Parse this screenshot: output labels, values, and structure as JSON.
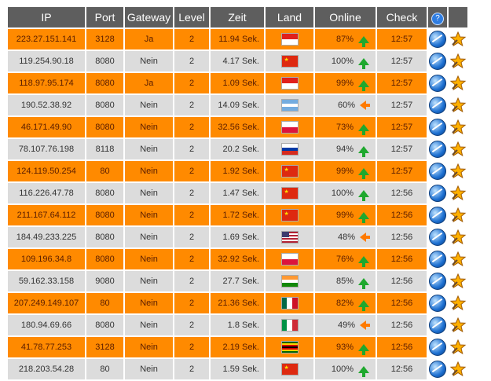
{
  "headers": {
    "ip": "IP",
    "port": "Port",
    "gateway": "Gateway",
    "level": "Level",
    "zeit": "Zeit",
    "land": "Land",
    "online": "Online",
    "check": "Check",
    "help": "?"
  },
  "rows": [
    {
      "ip": "223.27.151.141",
      "port": "3128",
      "gateway": "Ja",
      "level": "2",
      "zeit": "11.94 Sek.",
      "online": "87%",
      "trend": "up",
      "check": "12:57",
      "flag": "id"
    },
    {
      "ip": "119.254.90.18",
      "port": "8080",
      "gateway": "Nein",
      "level": "2",
      "zeit": "4.17 Sek.",
      "online": "100%",
      "trend": "up",
      "check": "12:57",
      "flag": "cn"
    },
    {
      "ip": "118.97.95.174",
      "port": "8080",
      "gateway": "Ja",
      "level": "2",
      "zeit": "1.09 Sek.",
      "online": "99%",
      "trend": "up",
      "check": "12:57",
      "flag": "id"
    },
    {
      "ip": "190.52.38.92",
      "port": "8080",
      "gateway": "Nein",
      "level": "2",
      "zeit": "14.09 Sek.",
      "online": "60%",
      "trend": "left",
      "check": "12:57",
      "flag": "ar"
    },
    {
      "ip": "46.171.49.90",
      "port": "8080",
      "gateway": "Nein",
      "level": "2",
      "zeit": "32.56 Sek.",
      "online": "73%",
      "trend": "up",
      "check": "12:57",
      "flag": "pl"
    },
    {
      "ip": "78.107.76.198",
      "port": "8118",
      "gateway": "Nein",
      "level": "2",
      "zeit": "20.2 Sek.",
      "online": "94%",
      "trend": "up",
      "check": "12:57",
      "flag": "ru"
    },
    {
      "ip": "124.119.50.254",
      "port": "80",
      "gateway": "Nein",
      "level": "2",
      "zeit": "1.92 Sek.",
      "online": "99%",
      "trend": "up",
      "check": "12:57",
      "flag": "cn"
    },
    {
      "ip": "116.226.47.78",
      "port": "8080",
      "gateway": "Nein",
      "level": "2",
      "zeit": "1.47 Sek.",
      "online": "100%",
      "trend": "up",
      "check": "12:56",
      "flag": "cn"
    },
    {
      "ip": "211.167.64.112",
      "port": "8080",
      "gateway": "Nein",
      "level": "2",
      "zeit": "1.72 Sek.",
      "online": "99%",
      "trend": "up",
      "check": "12:56",
      "flag": "cn"
    },
    {
      "ip": "184.49.233.225",
      "port": "8080",
      "gateway": "Nein",
      "level": "2",
      "zeit": "1.69 Sek.",
      "online": "48%",
      "trend": "left",
      "check": "12:56",
      "flag": "us"
    },
    {
      "ip": "109.196.34.8",
      "port": "8080",
      "gateway": "Nein",
      "level": "2",
      "zeit": "32.92 Sek.",
      "online": "76%",
      "trend": "up",
      "check": "12:56",
      "flag": "pl"
    },
    {
      "ip": "59.162.33.158",
      "port": "9080",
      "gateway": "Nein",
      "level": "2",
      "zeit": "27.7 Sek.",
      "online": "85%",
      "trend": "up",
      "check": "12:56",
      "flag": "in"
    },
    {
      "ip": "207.249.149.107",
      "port": "80",
      "gateway": "Nein",
      "level": "2",
      "zeit": "21.36 Sek.",
      "online": "82%",
      "trend": "up",
      "check": "12:56",
      "flag": "mx"
    },
    {
      "ip": "180.94.69.66",
      "port": "8080",
      "gateway": "Nein",
      "level": "2",
      "zeit": "1.8 Sek.",
      "online": "49%",
      "trend": "left",
      "check": "12:56",
      "flag": "it"
    },
    {
      "ip": "41.78.77.253",
      "port": "3128",
      "gateway": "Nein",
      "level": "2",
      "zeit": "2.19 Sek.",
      "online": "93%",
      "trend": "up",
      "check": "12:56",
      "flag": "zw"
    },
    {
      "ip": "218.203.54.28",
      "port": "80",
      "gateway": "Nein",
      "level": "2",
      "zeit": "1.59 Sek.",
      "online": "100%",
      "trend": "up",
      "check": "12:56",
      "flag": "cn"
    }
  ],
  "colors": {
    "orange_row": "#ff8a00",
    "grey_row": "#dcdcdc",
    "header": "#5e5e5e"
  }
}
